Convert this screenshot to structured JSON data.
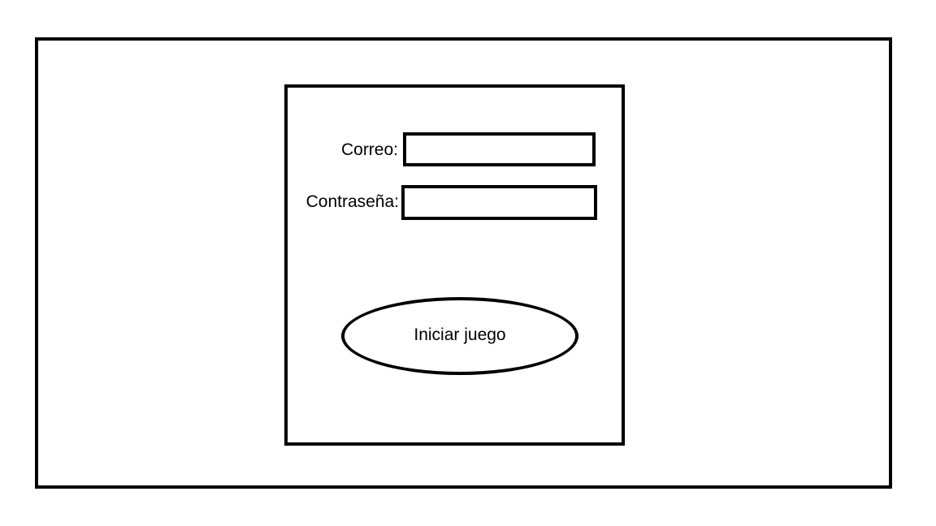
{
  "login_form": {
    "email_label": "Correo:",
    "email_value": "",
    "password_label": "Contraseña:",
    "password_value": "",
    "start_button_label": "Iniciar juego"
  },
  "colors": {
    "stroke": "#000000",
    "background": "#ffffff"
  }
}
